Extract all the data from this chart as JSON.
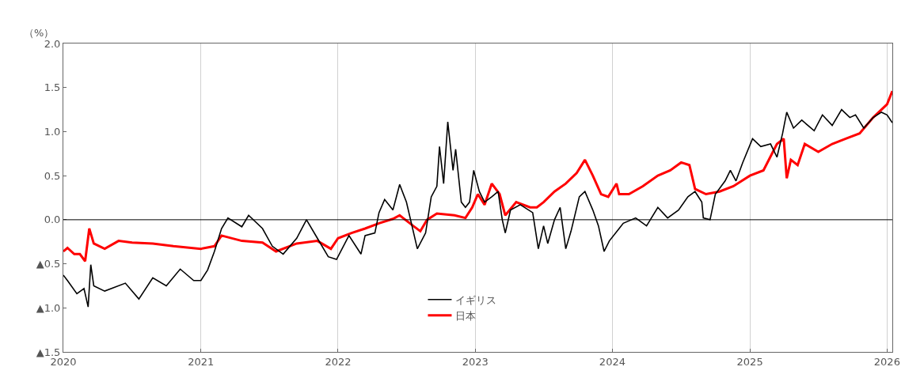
{
  "chart_data": {
    "type": "line",
    "ylabel": "（%）",
    "xlim": [
      "2020-01-01",
      "2026-01-15"
    ],
    "xticks": [
      "2020",
      "2021",
      "2022",
      "2023",
      "2024",
      "2025",
      "2026"
    ],
    "ylim": [
      -1.5,
      2.0
    ],
    "yticks": [
      {
        "value": -1.5,
        "label": "▲1.5"
      },
      {
        "value": -1.0,
        "label": "▲1.0"
      },
      {
        "value": -0.5,
        "label": "▲0.5"
      },
      {
        "value": 0,
        "label": "0.0"
      },
      {
        "value": 0.5,
        "label": "0.5"
      },
      {
        "value": 1.0,
        "label": "1.0"
      },
      {
        "value": 1.5,
        "label": "1.5"
      },
      {
        "value": 2.0,
        "label": "2.0"
      }
    ],
    "grid": "x",
    "legend": "bottom",
    "marker": "none",
    "line_style": "solid",
    "ref_lines": [
      {
        "axis": "y",
        "value": 0,
        "color": "#000000"
      }
    ],
    "series": [
      {
        "name": "イギリス",
        "color": "#000000",
        "x": [
          "2020-01-01",
          "2020-01-12",
          "2020-02-06",
          "2020-02-25",
          "2020-03-07",
          "2020-03-14",
          "2020-03-22",
          "2020-04-20",
          "2020-06-14",
          "2020-07-20",
          "2020-08-26",
          "2020-10-01",
          "2020-11-07",
          "2020-12-13",
          "2021-01-01",
          "2021-01-19",
          "2021-02-06",
          "2021-02-25",
          "2021-03-14",
          "2021-04-20",
          "2021-05-08",
          "2021-06-14",
          "2021-07-10",
          "2021-08-08",
          "2021-09-13",
          "2021-10-09",
          "2021-11-07",
          "2021-12-06",
          "2021-12-28",
          "2022-01-30",
          "2022-03-03",
          "2022-03-14",
          "2022-04-09",
          "2022-04-20",
          "2022-05-05",
          "2022-05-27",
          "2022-06-14",
          "2022-07-02",
          "2022-07-31",
          "2022-08-22",
          "2022-09-06",
          "2022-09-21",
          "2022-09-28",
          "2022-10-09",
          "2022-10-20",
          "2022-11-03",
          "2022-11-10",
          "2022-11-25",
          "2022-12-06",
          "2022-12-17",
          "2022-12-28",
          "2023-01-12",
          "2023-01-26",
          "2023-02-14",
          "2023-03-03",
          "2023-03-14",
          "2023-03-22",
          "2023-04-05",
          "2023-05-01",
          "2023-06-03",
          "2023-06-18",
          "2023-07-02",
          "2023-07-13",
          "2023-07-31",
          "2023-08-15",
          "2023-08-30",
          "2023-09-13",
          "2023-10-05",
          "2023-10-20",
          "2023-11-10",
          "2023-11-25",
          "2023-12-10",
          "2023-12-24",
          "2024-01-19",
          "2024-01-30",
          "2024-03-03",
          "2024-04-01",
          "2024-05-01",
          "2024-05-27",
          "2024-06-25",
          "2024-07-20",
          "2024-08-08",
          "2024-08-26",
          "2024-08-30",
          "2024-09-17",
          "2024-10-01",
          "2024-10-27",
          "2024-11-10",
          "2024-11-25",
          "2024-12-13",
          "2025-01-08",
          "2025-01-30",
          "2025-02-25",
          "2025-03-14",
          "2025-03-29",
          "2025-04-09",
          "2025-04-27",
          "2025-05-19",
          "2025-06-21",
          "2025-07-13",
          "2025-08-08",
          "2025-09-02",
          "2025-09-24",
          "2025-10-09",
          "2025-10-31",
          "2025-11-25",
          "2025-12-17",
          "2026-01-01",
          "2026-01-15"
        ],
        "values": [
          -0.63,
          -0.69,
          -0.84,
          -0.78,
          -0.99,
          -0.51,
          -0.75,
          -0.81,
          -0.72,
          -0.9,
          -0.66,
          -0.75,
          -0.56,
          -0.69,
          -0.69,
          -0.57,
          -0.36,
          -0.1,
          0.02,
          -0.08,
          0.05,
          -0.1,
          -0.3,
          -0.39,
          -0.21,
          0.0,
          -0.21,
          -0.42,
          -0.45,
          -0.18,
          -0.39,
          -0.18,
          -0.15,
          0.08,
          0.23,
          0.11,
          0.4,
          0.2,
          -0.33,
          -0.15,
          0.26,
          0.38,
          0.83,
          0.41,
          1.11,
          0.56,
          0.8,
          0.2,
          0.14,
          0.2,
          0.56,
          0.32,
          0.2,
          0.26,
          0.32,
          0.0,
          -0.15,
          0.11,
          0.17,
          0.08,
          -0.33,
          -0.07,
          -0.27,
          0.0,
          0.14,
          -0.33,
          -0.13,
          0.26,
          0.32,
          0.11,
          -0.07,
          -0.36,
          -0.24,
          -0.1,
          -0.04,
          0.02,
          -0.07,
          0.14,
          0.02,
          0.11,
          0.26,
          0.32,
          0.2,
          0.02,
          0.0,
          0.29,
          0.44,
          0.56,
          0.44,
          0.65,
          0.92,
          0.83,
          0.86,
          0.71,
          0.98,
          1.22,
          1.04,
          1.13,
          1.01,
          1.19,
          1.07,
          1.25,
          1.16,
          1.19,
          1.04,
          1.16,
          1.22,
          1.19,
          1.1
        ]
      },
      {
        "name": "日本",
        "color": "#ff0000",
        "x": [
          "2020-01-01",
          "2020-01-12",
          "2020-01-30",
          "2020-02-14",
          "2020-02-28",
          "2020-03-10",
          "2020-03-22",
          "2020-04-20",
          "2020-05-27",
          "2020-07-02",
          "2020-08-26",
          "2020-10-20",
          "2021-01-01",
          "2021-02-06",
          "2021-02-25",
          "2021-04-20",
          "2021-06-14",
          "2021-07-20",
          "2021-09-13",
          "2021-11-07",
          "2021-12-13",
          "2022-01-01",
          "2022-02-06",
          "2022-03-14",
          "2022-04-20",
          "2022-05-27",
          "2022-06-14",
          "2022-07-20",
          "2022-08-08",
          "2022-08-26",
          "2022-09-21",
          "2022-11-07",
          "2022-12-06",
          "2022-12-24",
          "2023-01-08",
          "2023-01-26",
          "2023-02-14",
          "2023-03-07",
          "2023-03-22",
          "2023-04-20",
          "2023-05-27",
          "2023-06-14",
          "2023-07-02",
          "2023-07-31",
          "2023-08-30",
          "2023-09-28",
          "2023-10-20",
          "2023-11-10",
          "2023-12-02",
          "2023-12-21",
          "2024-01-12",
          "2024-01-19",
          "2024-02-14",
          "2024-03-22",
          "2024-05-01",
          "2024-06-03",
          "2024-07-02",
          "2024-07-24",
          "2024-08-08",
          "2024-09-06",
          "2024-10-12",
          "2024-11-18",
          "2025-01-01",
          "2025-02-06",
          "2025-03-14",
          "2025-04-01",
          "2025-04-09",
          "2025-04-20",
          "2025-05-08",
          "2025-05-27",
          "2025-07-02",
          "2025-08-08",
          "2025-09-13",
          "2025-10-20",
          "2025-11-25",
          "2026-01-01",
          "2026-01-15"
        ],
        "values": [
          -0.36,
          -0.32,
          -0.39,
          -0.39,
          -0.47,
          -0.1,
          -0.27,
          -0.33,
          -0.24,
          -0.26,
          -0.27,
          -0.3,
          -0.33,
          -0.3,
          -0.18,
          -0.24,
          -0.26,
          -0.36,
          -0.27,
          -0.24,
          -0.33,
          -0.21,
          -0.15,
          -0.1,
          -0.04,
          0.01,
          0.05,
          -0.07,
          -0.13,
          0.0,
          0.07,
          0.05,
          0.02,
          0.14,
          0.29,
          0.17,
          0.41,
          0.29,
          0.05,
          0.2,
          0.14,
          0.14,
          0.2,
          0.32,
          0.41,
          0.53,
          0.68,
          0.5,
          0.29,
          0.26,
          0.41,
          0.29,
          0.29,
          0.38,
          0.5,
          0.56,
          0.65,
          0.62,
          0.35,
          0.29,
          0.32,
          0.38,
          0.5,
          0.56,
          0.86,
          0.92,
          0.47,
          0.68,
          0.62,
          0.86,
          0.77,
          0.86,
          0.92,
          0.98,
          1.16,
          1.31,
          1.46
        ]
      }
    ]
  }
}
